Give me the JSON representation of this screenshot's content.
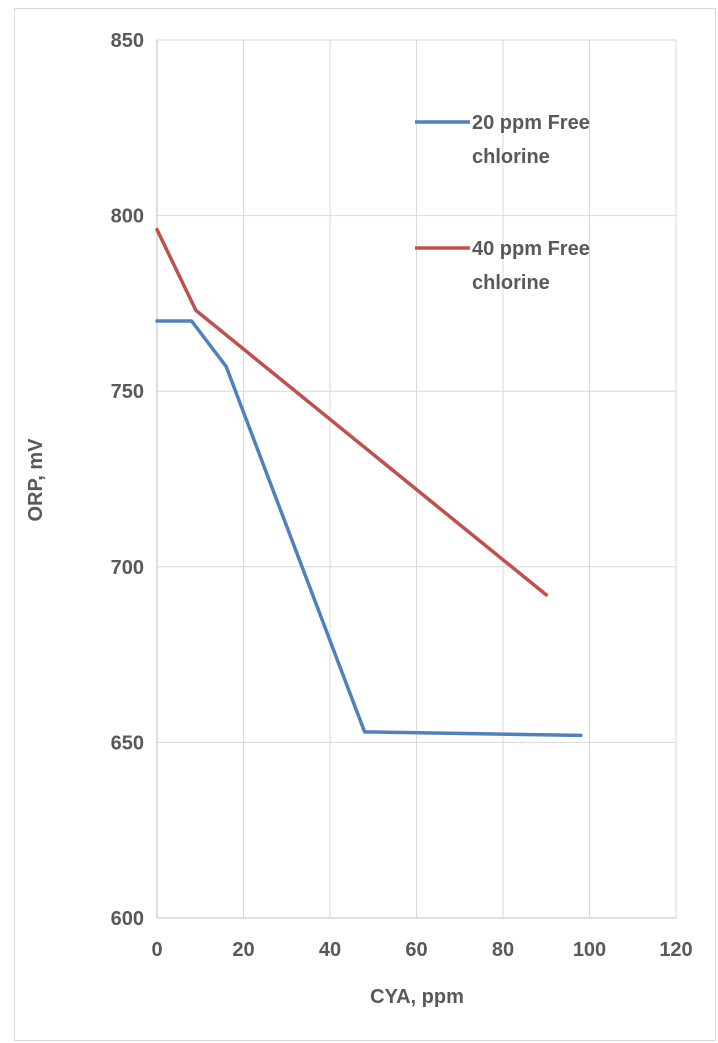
{
  "chart_data": {
    "type": "line",
    "xlabel": "CYA, ppm",
    "ylabel": "ORP, mV",
    "xlim": [
      0,
      120
    ],
    "ylim": [
      600,
      850
    ],
    "xticks": [
      0,
      20,
      40,
      60,
      80,
      100,
      120
    ],
    "yticks": [
      600,
      650,
      700,
      750,
      800,
      850
    ],
    "grid": true,
    "legend_position": "top-right",
    "series": [
      {
        "name": "20 ppm Free chlorine",
        "color": "#4f81bd",
        "x": [
          0,
          8,
          16,
          48,
          98
        ],
        "y": [
          770,
          770,
          757,
          653,
          652
        ]
      },
      {
        "name": "40 ppm Free chlorine",
        "color": "#c0504d",
        "x": [
          0,
          9,
          90
        ],
        "y": [
          796,
          773,
          692
        ]
      }
    ]
  }
}
